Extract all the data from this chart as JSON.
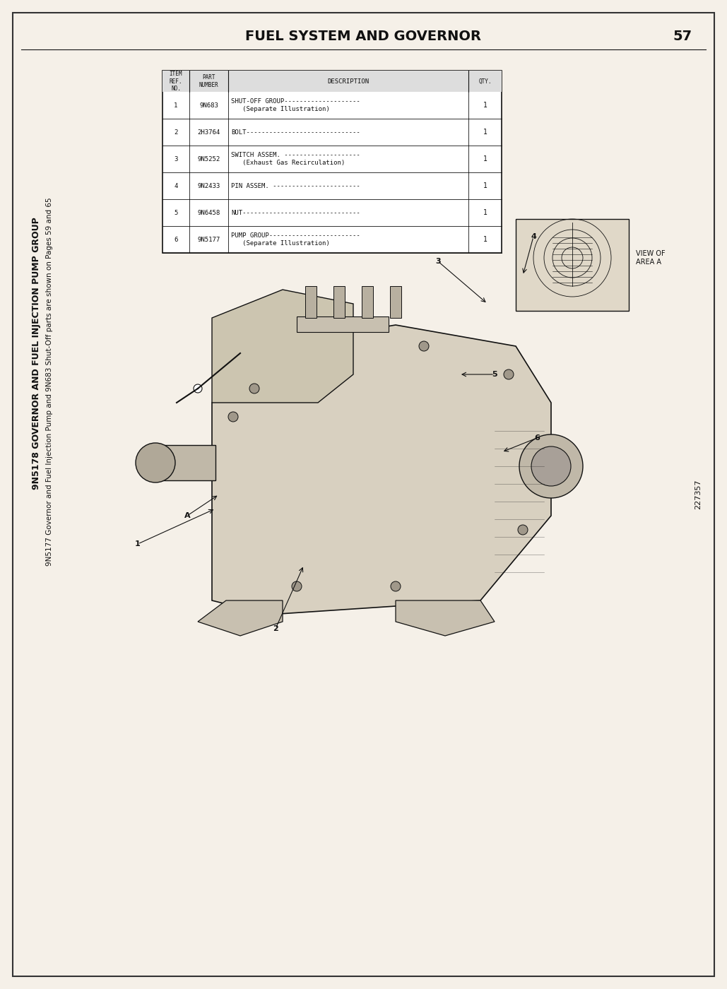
{
  "page_title": "FUEL SYSTEM AND GOVERNOR",
  "page_number": "57",
  "background_color": "#f5f0e8",
  "border_color": "#333333",
  "text_color": "#111111",
  "side_label_main": "9N5178 GOVERNOR AND FUEL INJECTION PUMP GROUP",
  "side_label_sub": "9N5177 Governor and Fuel Injection Pump and 9N683 Shut-Off parts are shown on Pages 59 and 65",
  "figure_number": "227357",
  "table": {
    "headers": [
      "ITEM\nREF.\nNUMBER",
      "PART\nNUMBER",
      "DESCRIPTION",
      "QTY."
    ],
    "rows": [
      [
        "1",
        "9N683",
        "SHUT-OFF GROUP--------------------\n   (Separate Illustration)",
        "1"
      ],
      [
        "2",
        "2H3764",
        "BOLT------------------------------",
        "1"
      ],
      [
        "3",
        "9N5252",
        "SWITCH ASSEM. --------------------\n   (Exhaust Gas Recirculation)",
        "1"
      ],
      [
        "4",
        "9N2433",
        "PIN ASSEM. -----------------------",
        "1"
      ],
      [
        "5",
        "9N6458",
        "NUT-------------------------------",
        "1"
      ],
      [
        "6",
        "9N5177",
        "PUMP GROUP------------------------\n   (Separate Illustration)",
        "1"
      ]
    ]
  },
  "view_label": "VIEW OF\nAREA A",
  "callout_numbers": [
    "1",
    "2",
    "3",
    "4",
    "5",
    "6",
    "A"
  ]
}
